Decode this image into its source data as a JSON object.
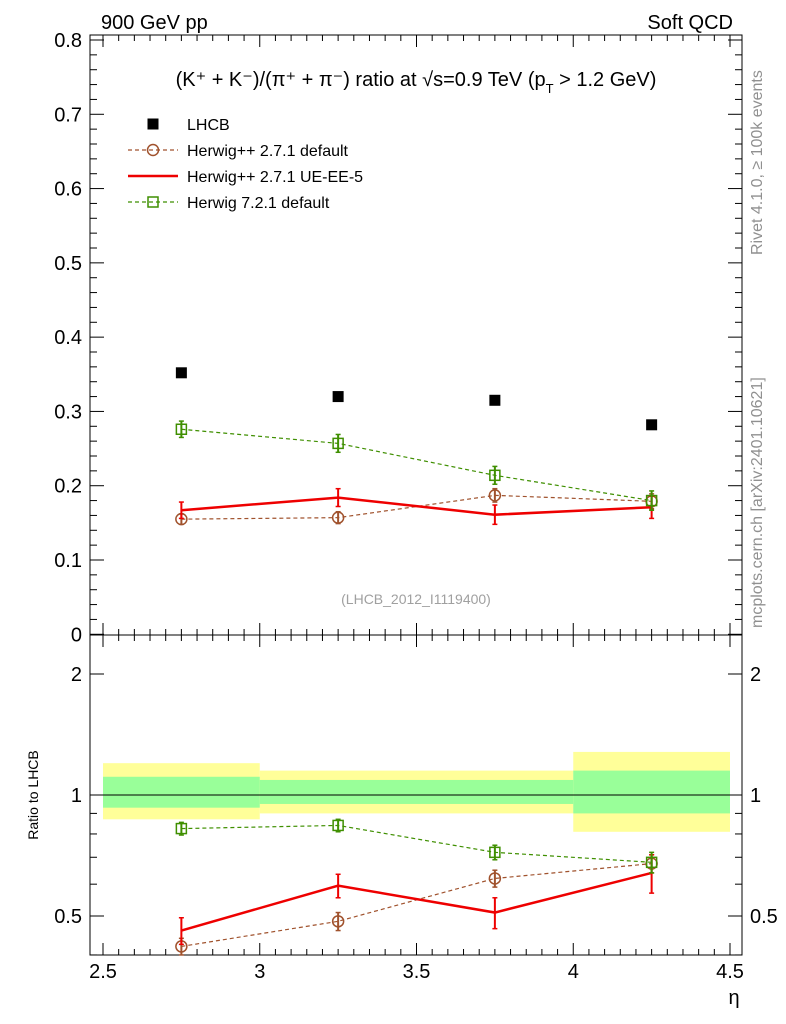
{
  "header": {
    "left": "900 GeV pp",
    "right": "Soft QCD"
  },
  "side_labels": {
    "rivet": "Rivet 4.1.0, ≥ 100k events",
    "mcplots": "mcplots.cern.ch [arXiv:2401.10621]"
  },
  "title": {
    "ratio_part": "(K⁺ + K⁻)/(π⁺ + π⁻) ratio at",
    "sqrt_s": "√s=0.9 TeV",
    "cut": "(p",
    "cut_sub": "T",
    "cut_end": " > 1.2 GeV)"
  },
  "analysis_id": "(LHCB_2012_I1119400)",
  "chart_data": [
    {
      "type": "scatter",
      "panel": "main",
      "xlabel": "η",
      "ylabel": "",
      "xlim": [
        2.5,
        4.5
      ],
      "ylim": [
        0,
        0.8
      ],
      "yticks": [
        0,
        0.1,
        0.2,
        0.3,
        0.4,
        0.5,
        0.6,
        0.7,
        0.8
      ],
      "ytick_labels": [
        "0",
        "0.1",
        "0.2",
        "0.3",
        "0.4",
        "0.5",
        "0.6",
        "0.7",
        "0.8"
      ],
      "legend_position": "top-left",
      "x": [
        2.75,
        3.25,
        3.75,
        4.25
      ],
      "x_bin_edges": [
        2.5,
        3.0,
        3.5,
        4.0,
        4.5
      ],
      "series": [
        {
          "name": "LHCB",
          "marker": "filled-square",
          "color": "#000000",
          "line": "none",
          "values": [
            0.352,
            0.32,
            0.315,
            0.282
          ],
          "errors": [
            0.003,
            0.003,
            0.003,
            0.003
          ]
        },
        {
          "name": "Herwig++ 2.7.1 default",
          "marker": "open-circle",
          "color": "#a0522d",
          "line": "dashed",
          "values": [
            0.155,
            0.157,
            0.187,
            0.179
          ],
          "errors": [
            0.007,
            0.008,
            0.009,
            0.01
          ]
        },
        {
          "name": "Herwig++ 2.7.1 UE-EE-5",
          "marker": "none",
          "color": "#ee0000",
          "line": "solid",
          "values": [
            0.167,
            0.184,
            0.161,
            0.171
          ],
          "errors": [
            0.011,
            0.012,
            0.013,
            0.015
          ]
        },
        {
          "name": "Herwig 7.2.1 default",
          "marker": "open-square",
          "color": "#3f8f00",
          "line": "dashed",
          "values": [
            0.276,
            0.257,
            0.214,
            0.18
          ],
          "errors": [
            0.011,
            0.012,
            0.012,
            0.013
          ]
        }
      ]
    },
    {
      "type": "scatter",
      "panel": "ratio",
      "xlabel": "η",
      "ylabel": "Ratio to LHCB",
      "xlim": [
        2.5,
        4.5
      ],
      "ylim": [
        0.4,
        2.4
      ],
      "ylog": true,
      "xticks": [
        2.5,
        3,
        3.5,
        4,
        4.5
      ],
      "xtick_labels": [
        "2.5",
        "3",
        "3.5",
        "4",
        "4.5"
      ],
      "yticks": [
        0.5,
        1,
        2
      ],
      "ytick_labels": [
        "0.5",
        "1",
        "2"
      ],
      "x": [
        2.75,
        3.25,
        3.75,
        4.25
      ],
      "x_bin_edges": [
        2.5,
        3.0,
        3.5,
        4.0,
        4.5
      ],
      "reference_bands": {
        "inner_green": [
          [
            0.93,
            1.11
          ],
          [
            0.95,
            1.09
          ],
          [
            0.95,
            1.09
          ],
          [
            0.9,
            1.15
          ]
        ],
        "outer_yellow": [
          [
            0.87,
            1.2
          ],
          [
            0.9,
            1.15
          ],
          [
            0.9,
            1.15
          ],
          [
            0.81,
            1.28
          ]
        ]
      },
      "series": [
        {
          "name": "Herwig++ 2.7.1 default",
          "color": "#a0522d",
          "line": "dashed",
          "marker": "open-circle",
          "values": [
            0.42,
            0.485,
            0.62,
            0.675
          ],
          "errors": [
            0.02,
            0.025,
            0.03,
            0.035
          ]
        },
        {
          "name": "Herwig++ 2.7.1 UE-EE-5",
          "color": "#ee0000",
          "line": "solid",
          "marker": "none",
          "values": [
            0.46,
            0.595,
            0.51,
            0.64
          ],
          "errors": [
            0.035,
            0.04,
            0.045,
            0.07
          ]
        },
        {
          "name": "Herwig 7.2.1 default",
          "color": "#3f8f00",
          "line": "dashed",
          "marker": "open-square",
          "values": [
            0.825,
            0.84,
            0.72,
            0.68
          ],
          "errors": [
            0.03,
            0.03,
            0.03,
            0.04
          ]
        }
      ]
    }
  ]
}
